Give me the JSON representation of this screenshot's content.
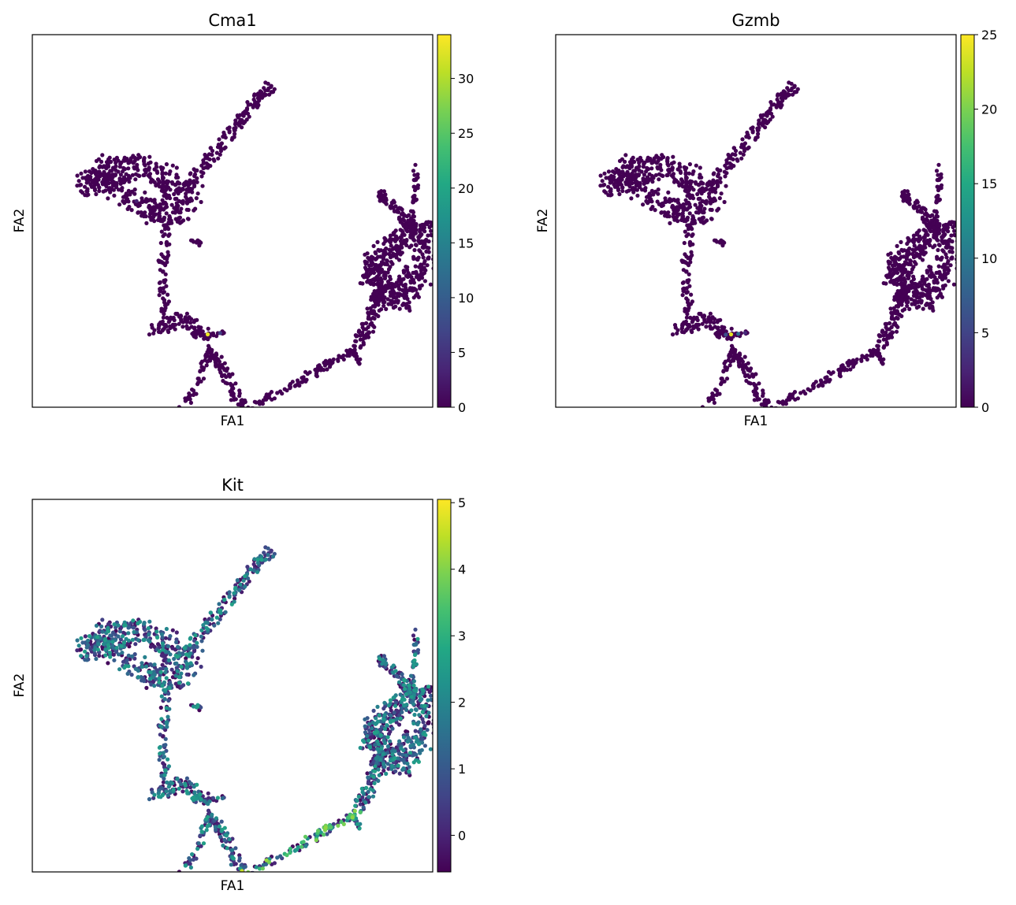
{
  "chart_data": [
    {
      "type": "scatter",
      "title": "Cma1",
      "xlabel": "FA1",
      "ylabel": "FA2",
      "colormap": "viridis",
      "colorbar": {
        "min": 0,
        "max": 34,
        "ticks": [
          0,
          5,
          10,
          15,
          20,
          25,
          30
        ]
      },
      "background_value": 0,
      "highlights": [
        {
          "branch": "junction",
          "t": 0.5,
          "value": 33
        },
        {
          "branch": "junction",
          "t": 0.85,
          "value": 6
        },
        {
          "branch": "left-arm",
          "t": 0.5,
          "value": 3
        }
      ]
    },
    {
      "type": "scatter",
      "title": "Gzmb",
      "xlabel": "FA1",
      "ylabel": "FA2",
      "colormap": "viridis",
      "colorbar": {
        "min": 0,
        "max": 25,
        "ticks": [
          0,
          5,
          10,
          15,
          20,
          25
        ]
      },
      "background_value": 0,
      "highlights": [
        {
          "branch": "junction",
          "t": 0.5,
          "value": 24
        },
        {
          "branch": "junction",
          "t": 0.7,
          "value": 9
        },
        {
          "branch": "junction",
          "t": 0.35,
          "value": 6
        },
        {
          "branch": "junction",
          "t": 0.9,
          "value": 3
        }
      ]
    },
    {
      "type": "scatter",
      "title": "Kit",
      "xlabel": "FA1",
      "ylabel": "FA2",
      "colormap": "viridis",
      "colorbar": {
        "min": -0.55,
        "max": 5.05,
        "ticks": [
          0,
          1,
          2,
          3,
          4,
          5
        ]
      },
      "value_range": [
        -0.5,
        5
      ],
      "value_mean": 1.1,
      "hotspot": {
        "branch": "bottom-tip",
        "value": 4.8
      }
    }
  ]
}
